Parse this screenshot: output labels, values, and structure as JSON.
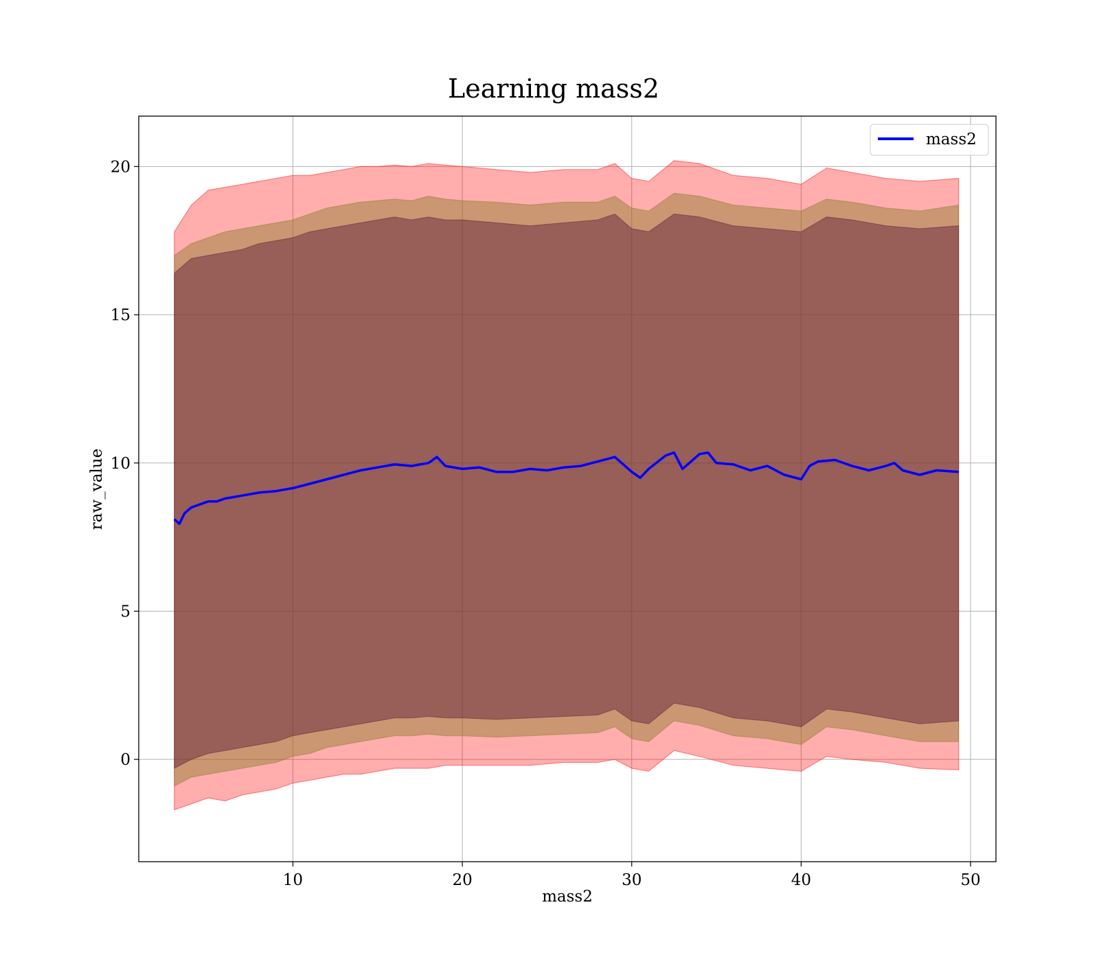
{
  "chart_data": {
    "type": "line",
    "title": "Learning mass2",
    "xlabel": "mass2",
    "ylabel": "raw_value",
    "xlim": [
      0.9,
      51.5
    ],
    "ylim": [
      -3.45,
      21.7
    ],
    "xticks": [
      10,
      20,
      30,
      40,
      50
    ],
    "yticks": [
      0,
      5,
      10,
      15,
      20
    ],
    "grid": true,
    "legend_position": "top-right",
    "series": [
      {
        "name": "mass2",
        "color": "#0000ff",
        "x": [
          3.0,
          3.3,
          3.6,
          4.0,
          4.5,
          5.0,
          5.5,
          6.0,
          6.5,
          7.0,
          8.0,
          9.0,
          10.0,
          11.0,
          12.0,
          13.0,
          14.0,
          15.0,
          16.0,
          17.0,
          18.0,
          18.5,
          19.0,
          20.0,
          21.0,
          22.0,
          23.0,
          24.0,
          25.0,
          26.0,
          27.0,
          28.0,
          29.0,
          30.0,
          30.5,
          31.0,
          32.0,
          32.5,
          33.0,
          34.0,
          34.5,
          35.0,
          36.0,
          37.0,
          38.0,
          39.0,
          40.0,
          40.5,
          41.0,
          42.0,
          43.0,
          44.0,
          45.0,
          45.5,
          46.0,
          47.0,
          48.0,
          49.3
        ],
        "y": [
          8.1,
          7.95,
          8.3,
          8.5,
          8.6,
          8.7,
          8.7,
          8.8,
          8.85,
          8.9,
          9.0,
          9.05,
          9.15,
          9.3,
          9.45,
          9.6,
          9.75,
          9.85,
          9.95,
          9.9,
          10.0,
          10.2,
          9.9,
          9.8,
          9.85,
          9.7,
          9.7,
          9.8,
          9.75,
          9.85,
          9.9,
          10.05,
          10.2,
          9.7,
          9.5,
          9.8,
          10.25,
          10.35,
          9.8,
          10.3,
          10.35,
          10.0,
          9.95,
          9.75,
          9.9,
          9.6,
          9.45,
          9.9,
          10.05,
          10.1,
          9.9,
          9.75,
          9.9,
          10.0,
          9.75,
          9.6,
          9.75,
          9.7
        ]
      }
    ],
    "bands": [
      {
        "label": "outer",
        "color": "#ff0000",
        "opacity": 0.32,
        "x": [
          3.0,
          4.0,
          5.0,
          6.0,
          7.0,
          8.0,
          9.0,
          10.0,
          11.0,
          12.0,
          13.0,
          14.0,
          15.0,
          16.0,
          17.0,
          18.0,
          19.0,
          20.0,
          22.0,
          24.0,
          26.0,
          28.0,
          29.0,
          30.0,
          31.0,
          32.5,
          34.0,
          36.0,
          38.0,
          40.0,
          41.5,
          43.0,
          45.0,
          47.0,
          49.3
        ],
        "upper": [
          17.8,
          18.7,
          19.2,
          19.3,
          19.4,
          19.5,
          19.6,
          19.7,
          19.7,
          19.8,
          19.9,
          20.0,
          20.0,
          20.05,
          20.0,
          20.1,
          20.05,
          20.0,
          19.9,
          19.8,
          19.9,
          19.9,
          20.1,
          19.6,
          19.5,
          20.2,
          20.1,
          19.7,
          19.6,
          19.4,
          19.95,
          19.8,
          19.6,
          19.5,
          19.6
        ],
        "lower": [
          -1.7,
          -1.5,
          -1.3,
          -1.4,
          -1.2,
          -1.1,
          -1.0,
          -0.8,
          -0.7,
          -0.6,
          -0.5,
          -0.5,
          -0.4,
          -0.3,
          -0.3,
          -0.3,
          -0.2,
          -0.2,
          -0.2,
          -0.2,
          -0.1,
          -0.1,
          0.0,
          -0.3,
          -0.4,
          0.3,
          0.1,
          -0.2,
          -0.3,
          -0.4,
          0.1,
          0.0,
          -0.1,
          -0.3,
          -0.35
        ]
      },
      {
        "label": "middle",
        "color": "#8b7a2a",
        "opacity": 0.45,
        "x": [
          3.0,
          4.0,
          5.0,
          6.0,
          7.0,
          8.0,
          9.0,
          10.0,
          11.0,
          12.0,
          13.0,
          14.0,
          15.0,
          16.0,
          17.0,
          18.0,
          19.0,
          20.0,
          22.0,
          24.0,
          26.0,
          28.0,
          29.0,
          30.0,
          31.0,
          32.5,
          34.0,
          36.0,
          38.0,
          40.0,
          41.5,
          43.0,
          45.0,
          47.0,
          49.3
        ],
        "upper": [
          17.0,
          17.4,
          17.6,
          17.8,
          17.9,
          18.0,
          18.1,
          18.2,
          18.4,
          18.6,
          18.7,
          18.8,
          18.85,
          18.9,
          18.85,
          19.0,
          18.9,
          18.85,
          18.8,
          18.7,
          18.8,
          18.8,
          19.0,
          18.6,
          18.5,
          19.1,
          19.0,
          18.7,
          18.6,
          18.5,
          18.9,
          18.8,
          18.6,
          18.5,
          18.7
        ],
        "lower": [
          -0.9,
          -0.6,
          -0.5,
          -0.4,
          -0.3,
          -0.2,
          -0.1,
          0.1,
          0.2,
          0.4,
          0.5,
          0.6,
          0.7,
          0.8,
          0.8,
          0.85,
          0.8,
          0.8,
          0.75,
          0.8,
          0.85,
          0.9,
          1.1,
          0.7,
          0.6,
          1.3,
          1.15,
          0.8,
          0.7,
          0.5,
          1.1,
          1.0,
          0.8,
          0.6,
          0.6
        ]
      },
      {
        "label": "inner",
        "color": "#5a1a3a",
        "opacity": 0.45,
        "x": [
          3.0,
          4.0,
          5.0,
          6.0,
          7.0,
          8.0,
          9.0,
          10.0,
          11.0,
          12.0,
          13.0,
          14.0,
          15.0,
          16.0,
          17.0,
          18.0,
          19.0,
          20.0,
          22.0,
          24.0,
          26.0,
          28.0,
          29.0,
          30.0,
          31.0,
          32.5,
          34.0,
          36.0,
          38.0,
          40.0,
          41.5,
          43.0,
          45.0,
          47.0,
          49.3
        ],
        "upper": [
          16.4,
          16.9,
          17.0,
          17.1,
          17.2,
          17.4,
          17.5,
          17.6,
          17.8,
          17.9,
          18.0,
          18.1,
          18.2,
          18.3,
          18.2,
          18.3,
          18.2,
          18.2,
          18.1,
          18.0,
          18.1,
          18.2,
          18.4,
          17.9,
          17.8,
          18.4,
          18.3,
          18.0,
          17.9,
          17.8,
          18.3,
          18.2,
          18.0,
          17.9,
          18.0
        ],
        "lower": [
          -0.3,
          0.0,
          0.2,
          0.3,
          0.4,
          0.5,
          0.6,
          0.8,
          0.9,
          1.0,
          1.1,
          1.2,
          1.3,
          1.4,
          1.4,
          1.45,
          1.4,
          1.4,
          1.35,
          1.4,
          1.45,
          1.5,
          1.7,
          1.3,
          1.2,
          1.9,
          1.75,
          1.4,
          1.3,
          1.1,
          1.7,
          1.6,
          1.4,
          1.2,
          1.3
        ]
      }
    ]
  }
}
